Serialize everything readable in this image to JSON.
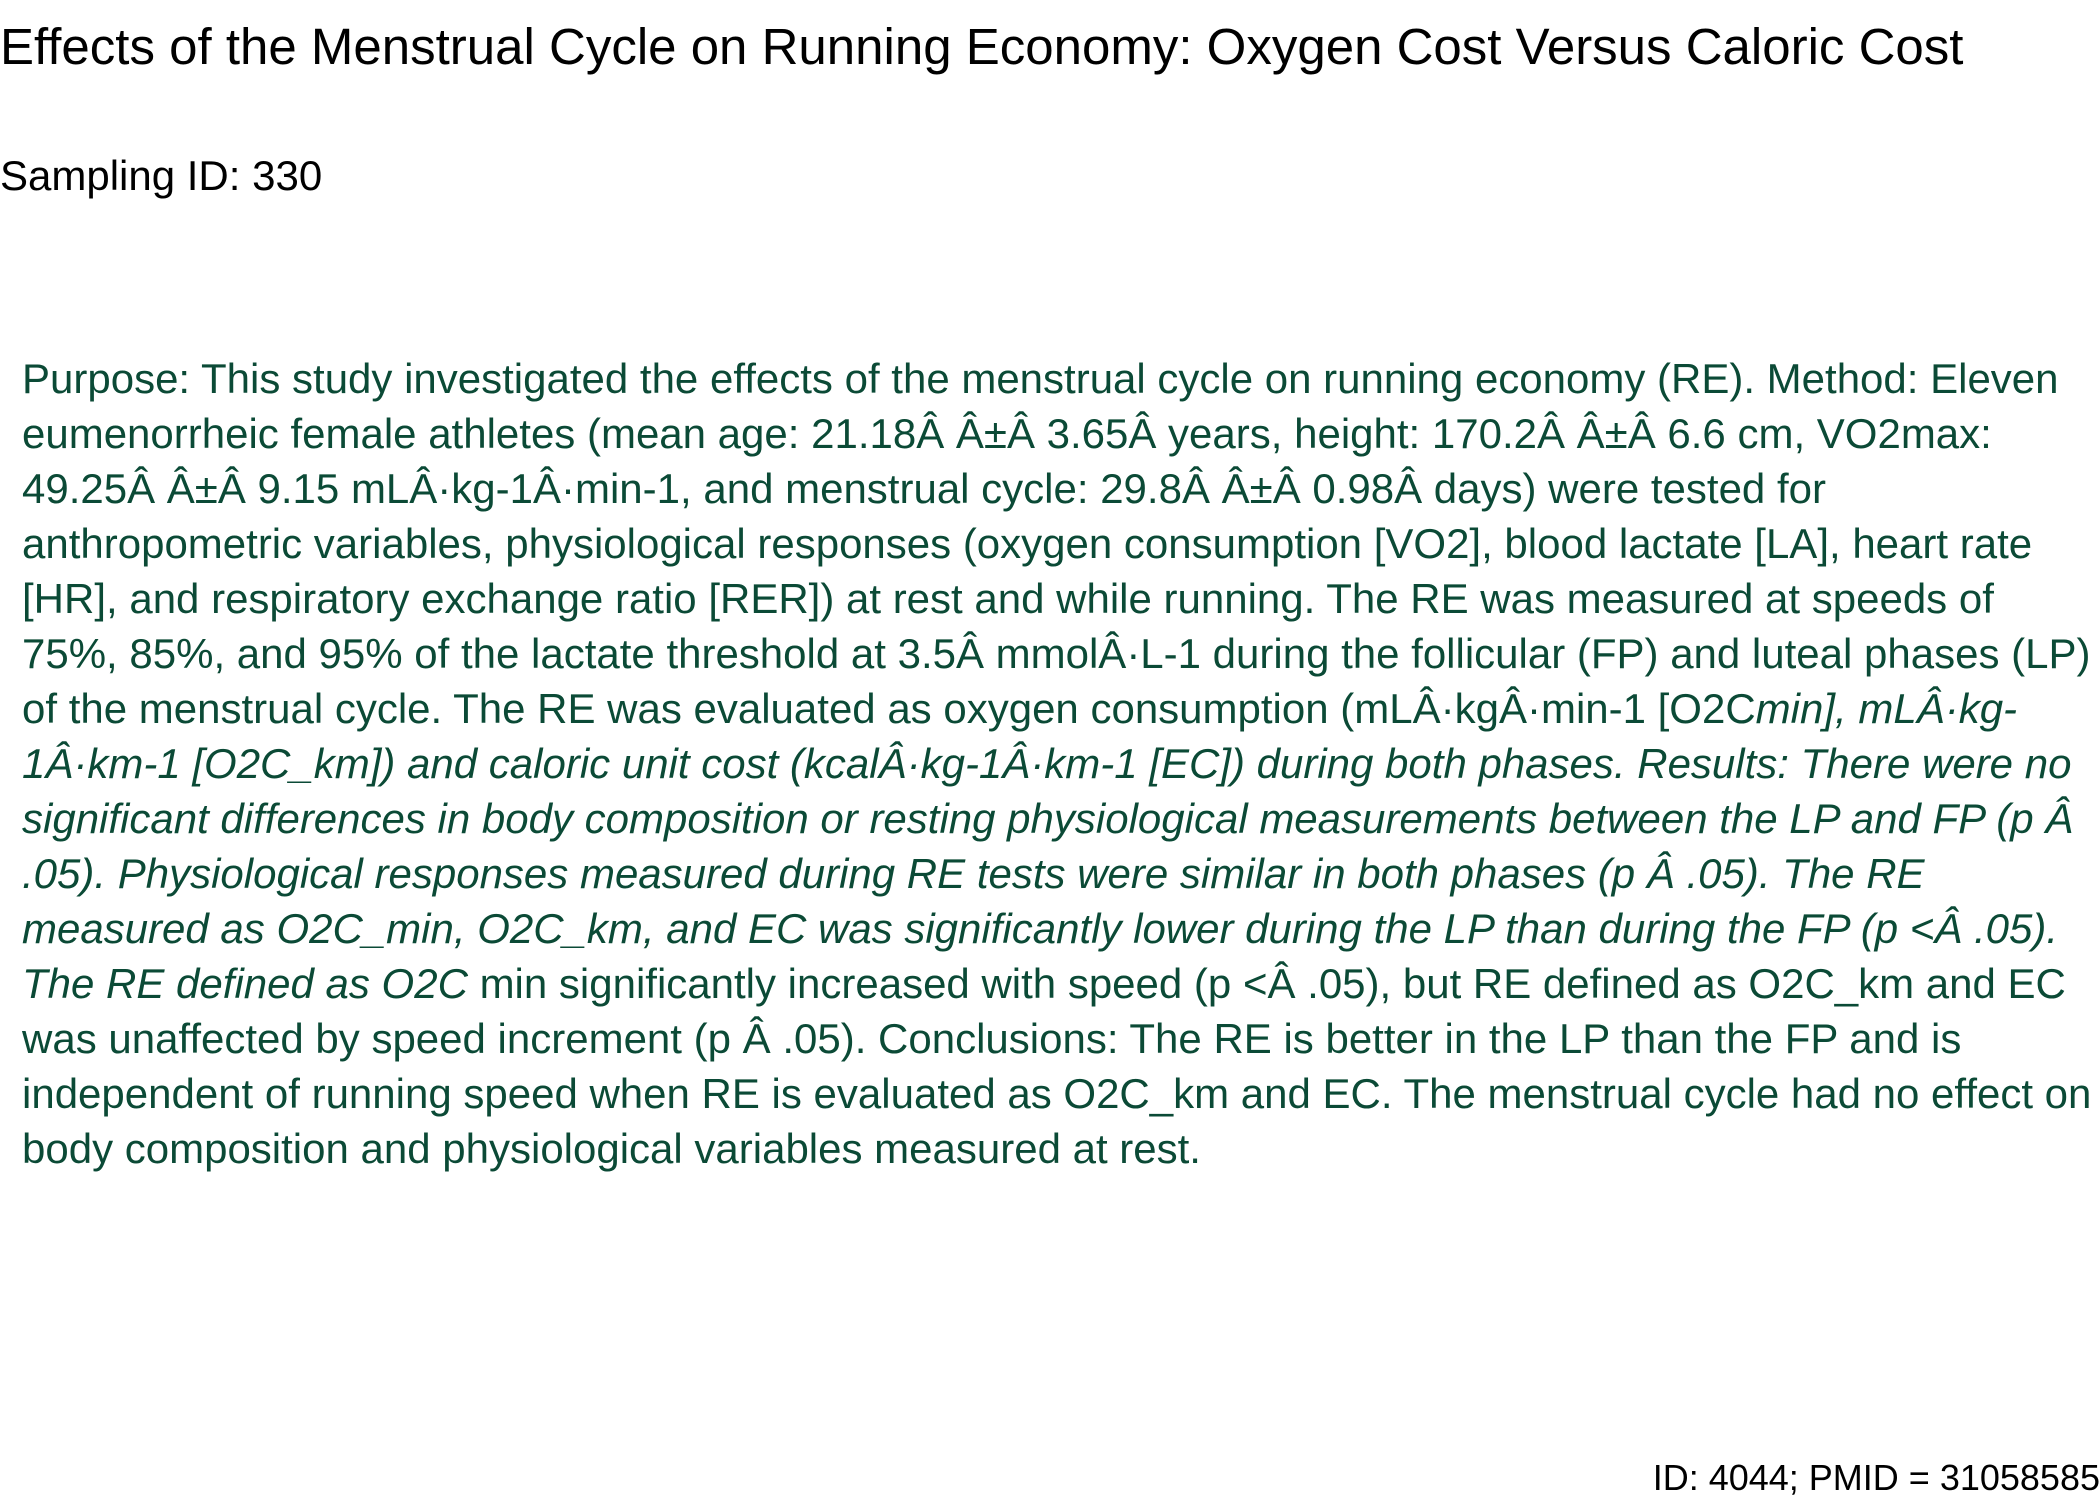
{
  "document": {
    "title": "Effects of the Menstrual Cycle on Running Economy: Oxygen Cost Versus Caloric Cost",
    "sampling_id": "Sampling ID: 330",
    "abstract_normal_1": "Purpose: This study investigated the effects of the menstrual cycle on running economy (RE). Method: Eleven eumenorrheic female athletes (mean age: 21.18Â Â±Â 3.65Â years, height: 170.2Â Â±Â 6.6 cm, VO2max: 49.25Â Â±Â 9.15 mLÂ·kg-1Â·min-1, and menstrual cycle: 29.8Â Â±Â 0.98Â days) were tested for anthropometric variables, physiological responses (oxygen consumption [VO2], blood lactate [LA], heart rate [HR], and respiratory exchange ratio [RER]) at rest and while running. The RE was measured at speeds of 75%, 85%, and 95% of the lactate threshold at 3.5Â mmolÂ·L-1 during the follicular (FP) and luteal phases (LP) of the menstrual cycle. The RE was evaluated as oxygen consumption (mLÂ·kgÂ·min-1 [O2C",
    "abstract_italic": "min], mLÂ·kg-1Â·km-1 [O2C_km]) and caloric unit cost (kcalÂ·kg-1Â·km-1 [EC]) during both phases. Results: There were no significant differences in body composition or resting physiological measurements between the LP and FP (p Â .05). Physiological responses measured during RE tests were similar in both phases (p Â .05). The RE measured as O2C_min, O2C_km, and EC was significantly lower during the LP than during the FP (p <Â .05). The RE defined as O2C",
    "abstract_normal_2": " min significantly increased with speed (p <Â .05), but RE defined as O2C_km and EC was unaffected by speed increment (p Â .05). Conclusions: The RE is better in the LP than the FP and is independent of running speed when RE is evaluated as O2C_km and EC. The menstrual cycle had no effect on body composition and physiological variables measured at rest.",
    "footer": "ID: 4044; PMID = 31058585"
  },
  "colors": {
    "abstract_text": "#0b4a36",
    "heading_text": "#000000",
    "background": "#ffffff"
  }
}
